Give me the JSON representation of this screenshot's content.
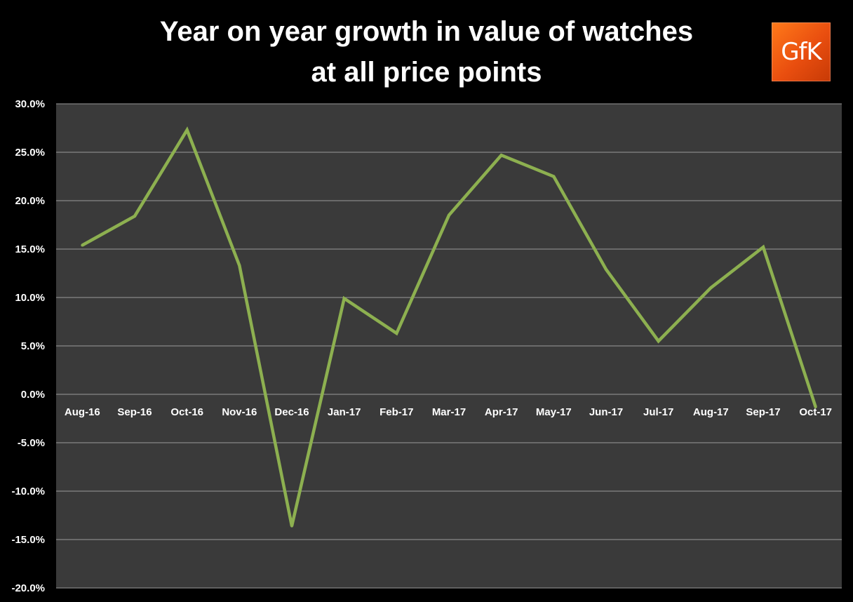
{
  "title": {
    "line1": "Year on year growth in value of watches",
    "line2": "at all price points"
  },
  "logo": {
    "text": "GfK",
    "color": "#e94e0f"
  },
  "colors": {
    "background": "#000000",
    "plot_area": "#3a3a3a",
    "gridline": "#9a9a9a",
    "series_line": "#8db050",
    "text": "#ffffff"
  },
  "chart_data": {
    "type": "line",
    "title": "Year on year growth in value of watches at all price points",
    "xlabel": "",
    "ylabel": "",
    "categories": [
      "Aug-16",
      "Sep-16",
      "Oct-16",
      "Nov-16",
      "Dec-16",
      "Jan-17",
      "Feb-17",
      "Mar-17",
      "Apr-17",
      "May-17",
      "Jun-17",
      "Jul-17",
      "Aug-17",
      "Sep-17",
      "Oct-17"
    ],
    "series": [
      {
        "values": [
          15.4,
          18.4,
          27.3,
          13.3,
          -13.6,
          9.9,
          6.3,
          18.5,
          24.7,
          22.5,
          12.9,
          5.5,
          11.0,
          15.2,
          -1.3
        ],
        "color": "#8db050"
      }
    ],
    "ylim": [
      -20,
      30
    ],
    "yticks": [
      "30.0%",
      "25.0%",
      "20.0%",
      "15.0%",
      "10.0%",
      "5.0%",
      "0.0%",
      "-5.0%",
      "-10.0%",
      "-15.0%",
      "-20.0%"
    ],
    "ytick_values": [
      30,
      25,
      20,
      15,
      10,
      5,
      0,
      -5,
      -10,
      -15,
      -20
    ],
    "grid": true,
    "legend": "none"
  }
}
